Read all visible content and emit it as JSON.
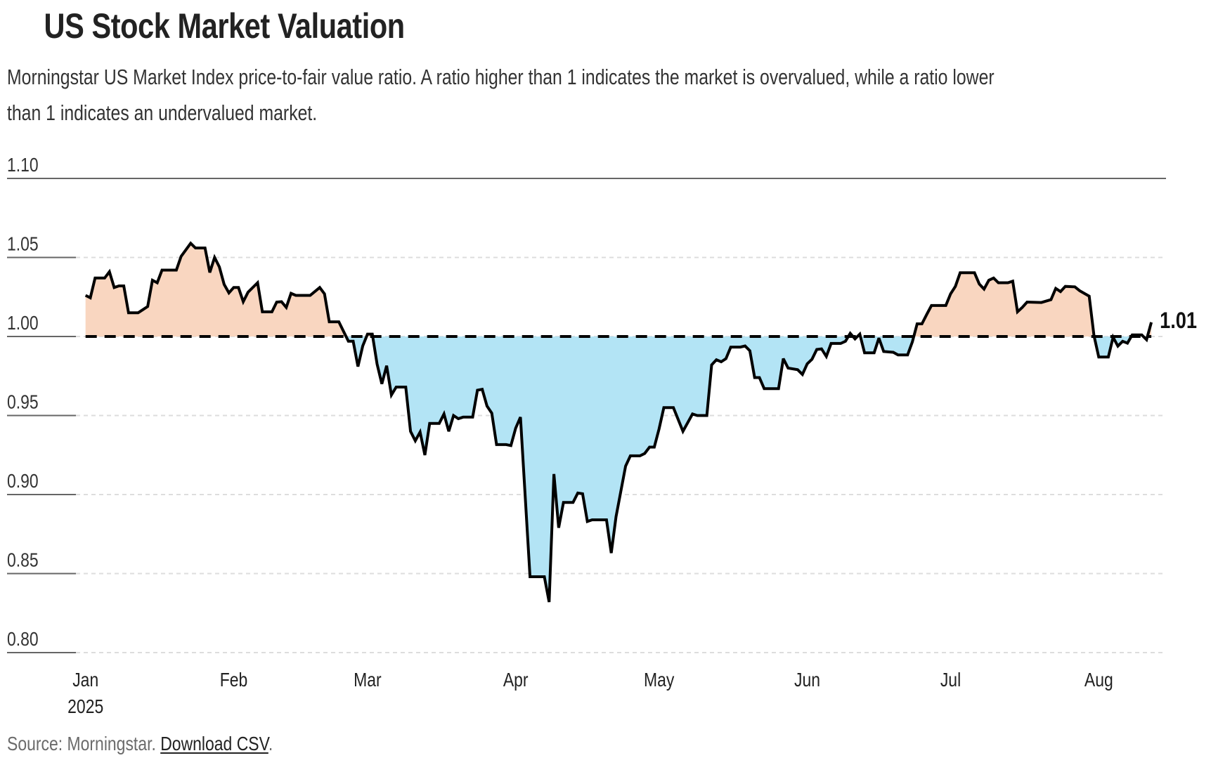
{
  "header": {
    "title": "US Stock Market Valuation",
    "subtitle_line1": "Morningstar US Market Index price-to-fair value ratio. A ratio higher than 1 indicates the market is overvalued, while a ratio lower",
    "subtitle_line2": "than 1 indicates an undervalued market."
  },
  "footer": {
    "source": "Source: Morningstar. ",
    "link": "Download CSV",
    "period": "."
  },
  "colors": {
    "line": "#000000",
    "above_fill": "#F9D6C0",
    "below_fill": "#B3E4F5",
    "grid": "#dddddd",
    "axis": "#666666"
  },
  "chart_data": {
    "type": "area",
    "title": "US Stock Market Valuation",
    "xlabel": "",
    "ylabel": "",
    "ylim": [
      0.8,
      1.1
    ],
    "yticks": [
      {
        "value": 1.1,
        "label": "1.10"
      },
      {
        "value": 1.05,
        "label": "1.05"
      },
      {
        "value": 1.0,
        "label": "1.00"
      },
      {
        "value": 0.95,
        "label": "0.95"
      },
      {
        "value": 0.9,
        "label": "0.90"
      },
      {
        "value": 0.85,
        "label": "0.85"
      },
      {
        "value": 0.8,
        "label": "0.80"
      }
    ],
    "xticks": [
      {
        "date": "2025-01-01",
        "label": "Jan",
        "sublabel": "2025"
      },
      {
        "date": "2025-02-01",
        "label": "Feb"
      },
      {
        "date": "2025-03-01",
        "label": "Mar"
      },
      {
        "date": "2025-04-01",
        "label": "Apr"
      },
      {
        "date": "2025-05-01",
        "label": "May"
      },
      {
        "date": "2025-06-01",
        "label": "Jun"
      },
      {
        "date": "2025-07-01",
        "label": "Jul"
      },
      {
        "date": "2025-08-01",
        "label": "Aug"
      }
    ],
    "xlim": [
      "2025-01-01",
      "2025-08-31"
    ],
    "baseline": 1.0,
    "end_label": "1.01",
    "grid": true,
    "series": [
      {
        "name": "Price-to-fair value ratio",
        "points": [
          [
            "2025-01-01",
            1.026
          ],
          [
            "2025-01-02",
            1.0245
          ],
          [
            "2025-01-03",
            1.037
          ],
          [
            "2025-01-05",
            1.037
          ],
          [
            "2025-01-06",
            1.041
          ],
          [
            "2025-01-07",
            1.031
          ],
          [
            "2025-01-08",
            1.032
          ],
          [
            "2025-01-09",
            1.032
          ],
          [
            "2025-01-10",
            1.015
          ],
          [
            "2025-01-12",
            1.015
          ],
          [
            "2025-01-13",
            1.017
          ],
          [
            "2025-01-14",
            1.019
          ],
          [
            "2025-01-15",
            1.0356
          ],
          [
            "2025-01-16",
            1.034
          ],
          [
            "2025-01-17",
            1.042
          ],
          [
            "2025-01-20",
            1.042
          ],
          [
            "2025-01-21",
            1.0507
          ],
          [
            "2025-01-23",
            1.059
          ],
          [
            "2025-01-24",
            1.056
          ],
          [
            "2025-01-26",
            1.056
          ],
          [
            "2025-01-27",
            1.0405
          ],
          [
            "2025-01-28",
            1.05
          ],
          [
            "2025-01-29",
            1.044
          ],
          [
            "2025-01-30",
            1.033
          ],
          [
            "2025-01-31",
            1.0276
          ],
          [
            "2025-02-01",
            1.031
          ],
          [
            "2025-02-02",
            1.031
          ],
          [
            "2025-02-03",
            1.022
          ],
          [
            "2025-02-04",
            1.028
          ],
          [
            "2025-02-06",
            1.034
          ],
          [
            "2025-02-07",
            1.0156
          ],
          [
            "2025-02-09",
            1.0156
          ],
          [
            "2025-02-10",
            1.0218
          ],
          [
            "2025-02-11",
            1.022
          ],
          [
            "2025-02-12",
            1.0184
          ],
          [
            "2025-02-13",
            1.0273
          ],
          [
            "2025-02-14",
            1.026
          ],
          [
            "2025-02-17",
            1.026
          ],
          [
            "2025-02-19",
            1.031
          ],
          [
            "2025-02-20",
            1.027
          ],
          [
            "2025-02-21",
            1.0093
          ],
          [
            "2025-02-23",
            1.0093
          ],
          [
            "2025-02-25",
            0.997
          ],
          [
            "2025-02-26",
            0.997
          ],
          [
            "2025-02-27",
            0.981
          ],
          [
            "2025-02-28",
            0.994
          ],
          [
            "2025-03-01",
            1.0015
          ],
          [
            "2025-03-02",
            1.0015
          ],
          [
            "2025-03-03",
            0.9826
          ],
          [
            "2025-03-04",
            0.97
          ],
          [
            "2025-03-05",
            0.9815
          ],
          [
            "2025-03-06",
            0.963
          ],
          [
            "2025-03-07",
            0.968
          ],
          [
            "2025-03-09",
            0.968
          ],
          [
            "2025-03-10",
            0.94
          ],
          [
            "2025-03-11",
            0.934
          ],
          [
            "2025-03-12",
            0.9395
          ],
          [
            "2025-03-13",
            0.925
          ],
          [
            "2025-03-14",
            0.945
          ],
          [
            "2025-03-16",
            0.945
          ],
          [
            "2025-03-17",
            0.951
          ],
          [
            "2025-03-18",
            0.94
          ],
          [
            "2025-03-19",
            0.95
          ],
          [
            "2025-03-20",
            0.948
          ],
          [
            "2025-03-21",
            0.949
          ],
          [
            "2025-03-23",
            0.949
          ],
          [
            "2025-03-24",
            0.966
          ],
          [
            "2025-03-25",
            0.9666
          ],
          [
            "2025-03-26",
            0.956
          ],
          [
            "2025-03-27",
            0.9515
          ],
          [
            "2025-03-28",
            0.9316
          ],
          [
            "2025-03-30",
            0.9316
          ],
          [
            "2025-03-31",
            0.931
          ],
          [
            "2025-04-01",
            0.942
          ],
          [
            "2025-04-02",
            0.949
          ],
          [
            "2025-04-04",
            0.848
          ],
          [
            "2025-04-07",
            0.848
          ],
          [
            "2025-04-08",
            0.832
          ],
          [
            "2025-04-09",
            0.913
          ],
          [
            "2025-04-10",
            0.879
          ],
          [
            "2025-04-11",
            0.895
          ],
          [
            "2025-04-13",
            0.895
          ],
          [
            "2025-04-14",
            0.901
          ],
          [
            "2025-04-15",
            0.9005
          ],
          [
            "2025-04-16",
            0.883
          ],
          [
            "2025-04-17",
            0.884
          ],
          [
            "2025-04-20",
            0.884
          ],
          [
            "2025-04-21",
            0.863
          ],
          [
            "2025-04-22",
            0.886
          ],
          [
            "2025-04-24",
            0.918
          ],
          [
            "2025-04-25",
            0.9245
          ],
          [
            "2025-04-27",
            0.9245
          ],
          [
            "2025-04-28",
            0.926
          ],
          [
            "2025-04-29",
            0.93
          ],
          [
            "2025-04-30",
            0.93
          ],
          [
            "2025-05-01",
            0.9415
          ],
          [
            "2025-05-02",
            0.955
          ],
          [
            "2025-05-04",
            0.955
          ],
          [
            "2025-05-06",
            0.94
          ],
          [
            "2025-05-08",
            0.951
          ],
          [
            "2025-05-09",
            0.95
          ],
          [
            "2025-05-11",
            0.95
          ],
          [
            "2025-05-12",
            0.982
          ],
          [
            "2025-05-13",
            0.9853
          ],
          [
            "2025-05-14",
            0.984
          ],
          [
            "2025-05-15",
            0.986
          ],
          [
            "2025-05-16",
            0.9933
          ],
          [
            "2025-05-18",
            0.9933
          ],
          [
            "2025-05-19",
            0.994
          ],
          [
            "2025-05-20",
            0.991
          ],
          [
            "2025-05-21",
            0.974
          ],
          [
            "2025-05-22",
            0.974
          ],
          [
            "2025-05-23",
            0.967
          ],
          [
            "2025-05-26",
            0.967
          ],
          [
            "2025-05-27",
            0.986
          ],
          [
            "2025-05-28",
            0.98
          ],
          [
            "2025-05-30",
            0.979
          ],
          [
            "2025-05-31",
            0.976
          ],
          [
            "2025-06-01",
            0.9827
          ],
          [
            "2025-06-02",
            0.9856
          ],
          [
            "2025-06-03",
            0.9918
          ],
          [
            "2025-06-04",
            0.9922
          ],
          [
            "2025-06-05",
            0.9874
          ],
          [
            "2025-06-06",
            0.9956
          ],
          [
            "2025-06-08",
            0.9956
          ],
          [
            "2025-06-09",
            0.997
          ],
          [
            "2025-06-10",
            1.002
          ],
          [
            "2025-06-11",
            0.9985
          ],
          [
            "2025-06-12",
            1.0015
          ],
          [
            "2025-06-13",
            0.9897
          ],
          [
            "2025-06-15",
            0.9897
          ],
          [
            "2025-06-16",
            0.999
          ],
          [
            "2025-06-17",
            0.9905
          ],
          [
            "2025-06-19",
            0.99
          ],
          [
            "2025-06-20",
            0.9883
          ],
          [
            "2025-06-22",
            0.9883
          ],
          [
            "2025-06-23",
            0.9966
          ],
          [
            "2025-06-24",
            1.008
          ],
          [
            "2025-06-25",
            1.008
          ],
          [
            "2025-06-26",
            1.0139
          ],
          [
            "2025-06-27",
            1.0196
          ],
          [
            "2025-06-30",
            1.0196
          ],
          [
            "2025-07-01",
            1.027
          ],
          [
            "2025-07-02",
            1.0317
          ],
          [
            "2025-07-03",
            1.0403
          ],
          [
            "2025-07-06",
            1.0403
          ],
          [
            "2025-07-07",
            1.0332
          ],
          [
            "2025-07-08",
            1.03
          ],
          [
            "2025-07-09",
            1.0356
          ],
          [
            "2025-07-10",
            1.037
          ],
          [
            "2025-07-11",
            1.034
          ],
          [
            "2025-07-13",
            1.034
          ],
          [
            "2025-07-14",
            1.035
          ],
          [
            "2025-07-15",
            1.0156
          ],
          [
            "2025-07-16",
            1.0184
          ],
          [
            "2025-07-17",
            1.0218
          ],
          [
            "2025-07-20",
            1.0215
          ],
          [
            "2025-07-22",
            1.0233
          ],
          [
            "2025-07-23",
            1.0304
          ],
          [
            "2025-07-24",
            1.0284
          ],
          [
            "2025-07-25",
            1.0317
          ],
          [
            "2025-07-27",
            1.0314
          ],
          [
            "2025-07-28",
            1.029
          ],
          [
            "2025-07-30",
            1.0255
          ],
          [
            "2025-07-31",
            1.0006
          ],
          [
            "2025-08-01",
            0.987
          ],
          [
            "2025-08-03",
            0.987
          ],
          [
            "2025-08-04",
            0.9995
          ],
          [
            "2025-08-05",
            0.9939
          ],
          [
            "2025-08-06",
            0.997
          ],
          [
            "2025-08-07",
            0.9958
          ],
          [
            "2025-08-08",
            1.001
          ],
          [
            "2025-08-10",
            1.001
          ],
          [
            "2025-08-11",
            0.998
          ],
          [
            "2025-08-12",
            1.009
          ]
        ]
      }
    ]
  }
}
